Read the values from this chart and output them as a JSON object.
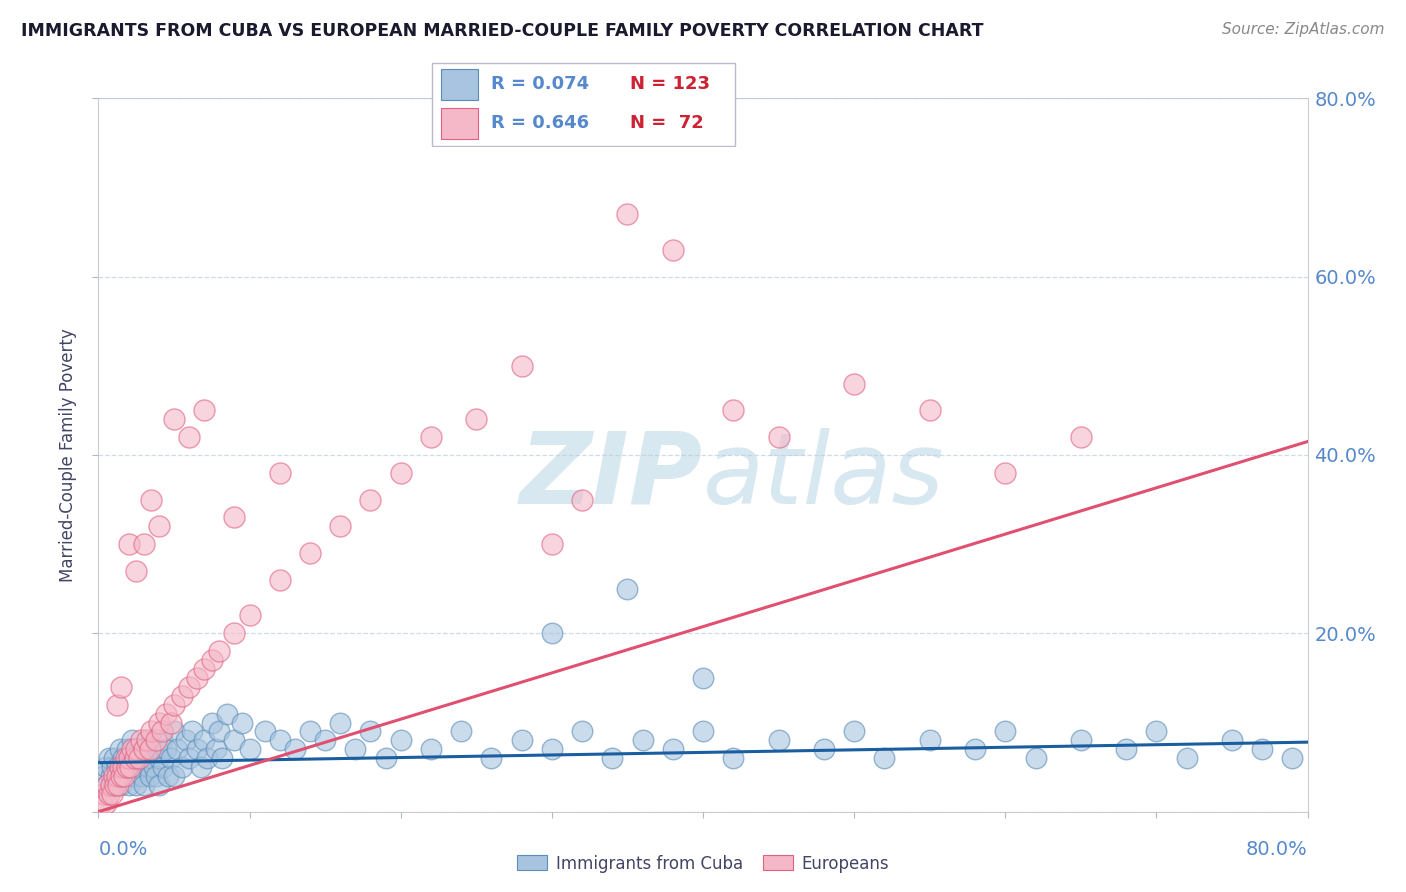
{
  "title": "IMMIGRANTS FROM CUBA VS EUROPEAN MARRIED-COUPLE FAMILY POVERTY CORRELATION CHART",
  "source": "Source: ZipAtlas.com",
  "ylabel": "Married-Couple Family Poverty",
  "xlim": [
    0,
    0.8
  ],
  "ylim": [
    0,
    0.8
  ],
  "blue_color": "#A8C4E0",
  "pink_color": "#F4B8C8",
  "blue_edge_color": "#5B8DB8",
  "pink_edge_color": "#E06080",
  "blue_line_color": "#1B5EA0",
  "pink_line_color": "#E05070",
  "axis_label_color": "#5588CC",
  "title_color": "#1a1a2e",
  "source_color": "#888888",
  "ylabel_color": "#444466",
  "watermark_color": "#D8E8F0",
  "background_color": "#FFFFFF",
  "grid_color": "#BBCCDD",
  "blue_line_y0": 0.055,
  "blue_line_y1": 0.078,
  "pink_line_y0": 0.0,
  "pink_line_y1": 0.415,
  "blue_scatter_x": [
    0.003,
    0.005,
    0.006,
    0.007,
    0.008,
    0.009,
    0.01,
    0.01,
    0.012,
    0.013,
    0.014,
    0.015,
    0.015,
    0.016,
    0.017,
    0.018,
    0.019,
    0.02,
    0.02,
    0.021,
    0.022,
    0.023,
    0.024,
    0.025,
    0.025,
    0.027,
    0.028,
    0.029,
    0.03,
    0.03,
    0.032,
    0.033,
    0.034,
    0.035,
    0.035,
    0.037,
    0.038,
    0.039,
    0.04,
    0.04,
    0.042,
    0.043,
    0.045,
    0.046,
    0.048,
    0.05,
    0.05,
    0.052,
    0.055,
    0.058,
    0.06,
    0.062,
    0.065,
    0.068,
    0.07,
    0.072,
    0.075,
    0.078,
    0.08,
    0.082,
    0.085,
    0.09,
    0.095,
    0.1,
    0.11,
    0.12,
    0.13,
    0.14,
    0.15,
    0.16,
    0.17,
    0.18,
    0.19,
    0.2,
    0.22,
    0.24,
    0.26,
    0.28,
    0.3,
    0.32,
    0.34,
    0.36,
    0.38,
    0.4,
    0.42,
    0.45,
    0.48,
    0.5,
    0.52,
    0.55,
    0.58,
    0.6,
    0.62,
    0.65,
    0.68,
    0.7,
    0.72,
    0.75,
    0.77,
    0.79,
    0.3,
    0.35,
    0.4
  ],
  "blue_scatter_y": [
    0.04,
    0.05,
    0.03,
    0.06,
    0.04,
    0.05,
    0.06,
    0.03,
    0.05,
    0.04,
    0.07,
    0.05,
    0.03,
    0.06,
    0.04,
    0.05,
    0.07,
    0.06,
    0.03,
    0.05,
    0.08,
    0.04,
    0.06,
    0.05,
    0.03,
    0.07,
    0.05,
    0.04,
    0.06,
    0.03,
    0.07,
    0.05,
    0.04,
    0.06,
    0.08,
    0.05,
    0.04,
    0.07,
    0.06,
    0.03,
    0.08,
    0.05,
    0.07,
    0.04,
    0.06,
    0.09,
    0.04,
    0.07,
    0.05,
    0.08,
    0.06,
    0.09,
    0.07,
    0.05,
    0.08,
    0.06,
    0.1,
    0.07,
    0.09,
    0.06,
    0.11,
    0.08,
    0.1,
    0.07,
    0.09,
    0.08,
    0.07,
    0.09,
    0.08,
    0.1,
    0.07,
    0.09,
    0.06,
    0.08,
    0.07,
    0.09,
    0.06,
    0.08,
    0.07,
    0.09,
    0.06,
    0.08,
    0.07,
    0.09,
    0.06,
    0.08,
    0.07,
    0.09,
    0.06,
    0.08,
    0.07,
    0.09,
    0.06,
    0.08,
    0.07,
    0.09,
    0.06,
    0.08,
    0.07,
    0.06,
    0.2,
    0.25,
    0.15
  ],
  "pink_scatter_x": [
    0.002,
    0.004,
    0.005,
    0.006,
    0.007,
    0.008,
    0.009,
    0.01,
    0.011,
    0.012,
    0.013,
    0.014,
    0.015,
    0.016,
    0.017,
    0.018,
    0.019,
    0.02,
    0.021,
    0.022,
    0.024,
    0.025,
    0.027,
    0.028,
    0.03,
    0.032,
    0.034,
    0.035,
    0.038,
    0.04,
    0.042,
    0.045,
    0.048,
    0.05,
    0.055,
    0.06,
    0.065,
    0.07,
    0.075,
    0.08,
    0.09,
    0.1,
    0.12,
    0.14,
    0.16,
    0.18,
    0.2,
    0.22,
    0.25,
    0.28,
    0.3,
    0.32,
    0.35,
    0.38,
    0.42,
    0.45,
    0.5,
    0.55,
    0.6,
    0.65,
    0.012,
    0.015,
    0.02,
    0.025,
    0.03,
    0.035,
    0.04,
    0.05,
    0.06,
    0.07,
    0.09,
    0.12
  ],
  "pink_scatter_y": [
    0.01,
    0.02,
    0.01,
    0.03,
    0.02,
    0.03,
    0.02,
    0.04,
    0.03,
    0.04,
    0.03,
    0.05,
    0.04,
    0.05,
    0.04,
    0.06,
    0.05,
    0.06,
    0.05,
    0.07,
    0.06,
    0.07,
    0.06,
    0.08,
    0.07,
    0.08,
    0.07,
    0.09,
    0.08,
    0.1,
    0.09,
    0.11,
    0.1,
    0.12,
    0.13,
    0.14,
    0.15,
    0.16,
    0.17,
    0.18,
    0.2,
    0.22,
    0.26,
    0.29,
    0.32,
    0.35,
    0.38,
    0.42,
    0.44,
    0.5,
    0.3,
    0.35,
    0.67,
    0.63,
    0.45,
    0.42,
    0.48,
    0.45,
    0.38,
    0.42,
    0.12,
    0.14,
    0.3,
    0.27,
    0.3,
    0.35,
    0.32,
    0.44,
    0.42,
    0.45,
    0.33,
    0.38
  ]
}
